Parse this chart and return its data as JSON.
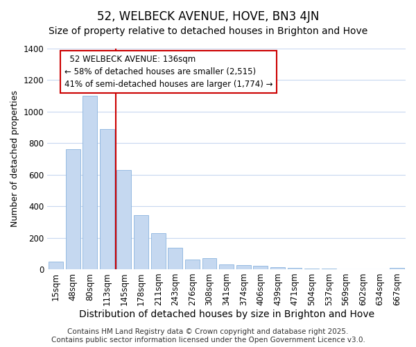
{
  "title": "52, WELBECK AVENUE, HOVE, BN3 4JN",
  "subtitle": "Size of property relative to detached houses in Brighton and Hove",
  "xlabel": "Distribution of detached houses by size in Brighton and Hove",
  "ylabel": "Number of detached properties",
  "bar_color": "#c5d8f0",
  "bar_edge_color": "#8ab4de",
  "background_color": "#ffffff",
  "grid_color": "#c8d8f0",
  "categories": [
    "15sqm",
    "48sqm",
    "80sqm",
    "113sqm",
    "145sqm",
    "178sqm",
    "211sqm",
    "243sqm",
    "276sqm",
    "308sqm",
    "341sqm",
    "374sqm",
    "406sqm",
    "439sqm",
    "471sqm",
    "504sqm",
    "537sqm",
    "569sqm",
    "602sqm",
    "634sqm",
    "667sqm"
  ],
  "values": [
    50,
    760,
    1100,
    890,
    630,
    345,
    230,
    135,
    60,
    70,
    30,
    25,
    20,
    15,
    10,
    5,
    3,
    2,
    2,
    1,
    10
  ],
  "ylim": [
    0,
    1400
  ],
  "yticks": [
    0,
    200,
    400,
    600,
    800,
    1000,
    1200,
    1400
  ],
  "annotation_text": "  52 WELBECK AVENUE: 136sqm\n← 58% of detached houses are smaller (2,515)\n41% of semi-detached houses are larger (1,774) →",
  "vline_x": 4,
  "vline_color": "#cc0000",
  "annotation_box_color": "#ffffff",
  "annotation_box_edge": "#cc0000",
  "footer": "Contains HM Land Registry data © Crown copyright and database right 2025.\nContains public sector information licensed under the Open Government Licence v3.0.",
  "title_fontsize": 12,
  "subtitle_fontsize": 10,
  "xlabel_fontsize": 10,
  "ylabel_fontsize": 9,
  "tick_fontsize": 8.5,
  "footer_fontsize": 7.5,
  "annot_fontsize": 8.5
}
